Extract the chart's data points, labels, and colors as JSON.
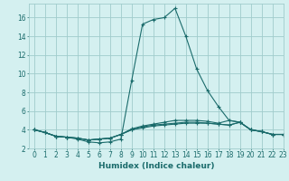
{
  "title": "",
  "xlabel": "Humidex (Indice chaleur)",
  "ylabel": "",
  "bg_color": "#d4f0f0",
  "grid_color": "#a0cccc",
  "line_color": "#1a6b6b",
  "xlim": [
    -0.5,
    23
  ],
  "ylim": [
    2,
    17.5
  ],
  "yticks": [
    2,
    4,
    6,
    8,
    10,
    12,
    14,
    16
  ],
  "xticks": [
    0,
    1,
    2,
    3,
    4,
    5,
    6,
    7,
    8,
    9,
    10,
    11,
    12,
    13,
    14,
    15,
    16,
    17,
    18,
    19,
    20,
    21,
    22,
    23
  ],
  "series": [
    {
      "x": [
        0,
        1,
        2,
        3,
        4,
        5,
        6,
        7,
        8,
        9,
        10,
        11,
        12,
        13,
        14,
        15,
        16,
        17,
        18,
        19,
        20,
        21,
        22,
        23
      ],
      "y": [
        4.0,
        3.7,
        3.3,
        3.2,
        3.0,
        2.7,
        2.6,
        2.7,
        3.0,
        9.3,
        15.3,
        15.8,
        16.0,
        17.0,
        14.0,
        10.5,
        8.2,
        6.5,
        5.0,
        4.8,
        4.0,
        3.8,
        3.5,
        3.5
      ]
    },
    {
      "x": [
        0,
        1,
        2,
        3,
        4,
        5,
        6,
        7,
        8,
        9,
        10,
        11,
        12,
        13,
        14,
        15,
        16,
        17,
        18,
        19,
        20,
        21,
        22,
        23
      ],
      "y": [
        4.0,
        3.7,
        3.3,
        3.2,
        3.1,
        2.9,
        3.0,
        3.1,
        3.5,
        4.0,
        4.2,
        4.4,
        4.5,
        4.6,
        4.7,
        4.7,
        4.7,
        4.6,
        4.5,
        4.8,
        4.0,
        3.8,
        3.5,
        3.5
      ]
    },
    {
      "x": [
        0,
        1,
        2,
        3,
        4,
        5,
        6,
        7,
        8,
        9,
        10,
        11,
        12,
        13,
        14,
        15,
        16,
        17,
        18,
        19,
        20,
        21,
        22,
        23
      ],
      "y": [
        4.0,
        3.7,
        3.3,
        3.2,
        3.1,
        2.9,
        3.0,
        3.1,
        3.5,
        4.0,
        4.3,
        4.5,
        4.6,
        4.7,
        4.8,
        4.8,
        4.7,
        4.6,
        4.5,
        4.8,
        4.0,
        3.8,
        3.5,
        3.5
      ]
    },
    {
      "x": [
        0,
        1,
        2,
        3,
        4,
        5,
        6,
        7,
        8,
        9,
        10,
        11,
        12,
        13,
        14,
        15,
        16,
        17,
        18,
        19,
        20,
        21,
        22,
        23
      ],
      "y": [
        4.0,
        3.7,
        3.3,
        3.2,
        3.1,
        2.9,
        3.0,
        3.1,
        3.5,
        4.1,
        4.4,
        4.6,
        4.8,
        5.0,
        5.0,
        5.0,
        4.9,
        4.7,
        5.0,
        4.8,
        4.0,
        3.8,
        3.5,
        3.5
      ]
    }
  ]
}
